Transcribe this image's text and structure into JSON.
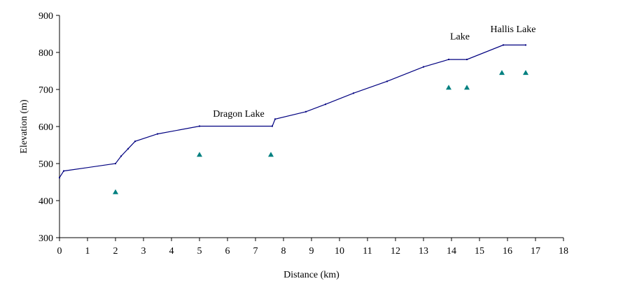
{
  "chart_data": {
    "type": "line",
    "title": "",
    "xlabel": "Distance (km)",
    "ylabel": "Elevation (m)",
    "xlim": [
      0,
      18
    ],
    "ylim": [
      300,
      900
    ],
    "x_ticks": [
      0,
      1,
      2,
      3,
      4,
      5,
      6,
      7,
      8,
      9,
      10,
      11,
      12,
      13,
      14,
      15,
      16,
      17,
      18
    ],
    "y_ticks": [
      300,
      400,
      500,
      600,
      700,
      800,
      900
    ],
    "grid": false,
    "legend": "none",
    "colors": {
      "profile": "#000080",
      "markers": "#008080"
    },
    "series": [
      {
        "kind": "line",
        "x": [
          0,
          0.15,
          2.0,
          2.2,
          2.45,
          2.7,
          3.5,
          5.0,
          7.6,
          7.7,
          8.8,
          9.5,
          10.5,
          11.7,
          13.0,
          13.9,
          14.55,
          15.85,
          16.65
        ],
        "y": [
          462,
          480,
          500,
          520,
          540,
          560,
          580,
          601,
          601,
          620,
          640,
          660,
          690,
          722,
          761,
          781,
          781,
          820,
          820
        ]
      },
      {
        "kind": "scatter",
        "marker": "triangle",
        "x": [
          2.0,
          5.0,
          7.55,
          13.9,
          14.55,
          15.8,
          16.65
        ],
        "y": [
          423,
          524,
          524,
          705,
          705,
          745,
          745
        ]
      }
    ],
    "annotations": [
      {
        "text": "Dragon Lake",
        "x": 6.4,
        "y": 626
      },
      {
        "text": "Lake",
        "x": 14.3,
        "y": 835
      },
      {
        "text": "Hallis Lake",
        "x": 16.2,
        "y": 855
      }
    ]
  }
}
